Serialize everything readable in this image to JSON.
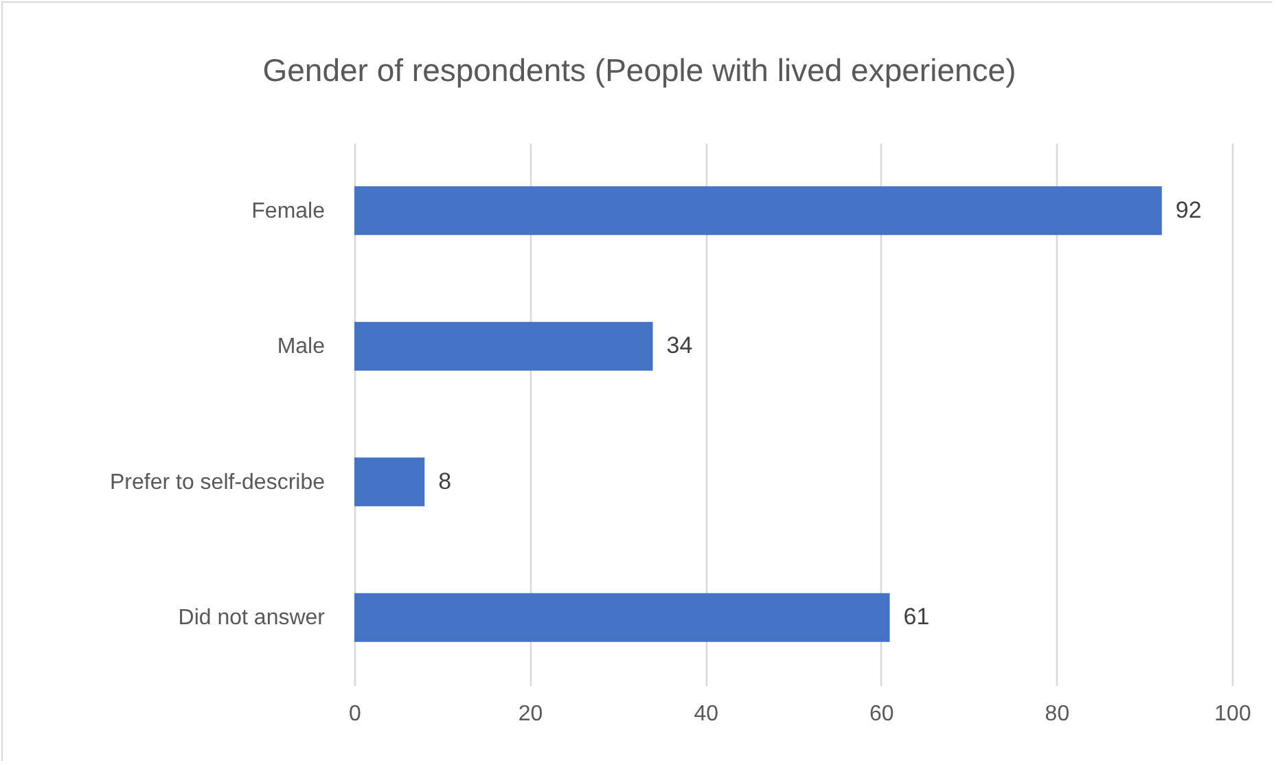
{
  "chart_data": {
    "type": "bar",
    "orientation": "horizontal",
    "title": "Gender of respondents (People with lived experience)",
    "categories": [
      "Female",
      "Male",
      "Prefer to self-describe",
      "Did not answer"
    ],
    "values": [
      92,
      34,
      8,
      61
    ],
    "color": "#4472c4",
    "data_labels": true,
    "xlim": [
      0,
      100
    ],
    "xticks": [
      0,
      20,
      40,
      60,
      80,
      100
    ],
    "grid": "x"
  }
}
